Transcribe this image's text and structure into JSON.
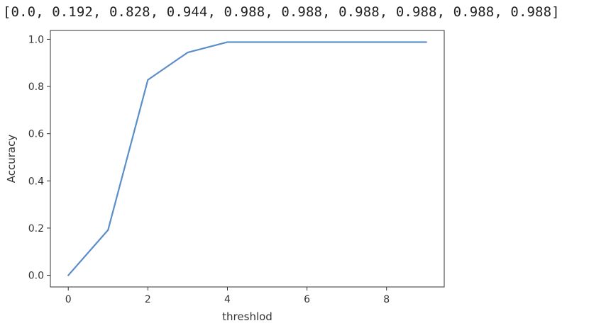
{
  "output": {
    "text": "[0.0, 0.192, 0.828, 0.944, 0.988, 0.988, 0.988, 0.988, 0.988, 0.988]"
  },
  "colors": {
    "line": "#5b8ec9",
    "axes": "#333333"
  },
  "chart_data": {
    "type": "line",
    "title": "",
    "xlabel": "threshlod",
    "ylabel": "Accuracy",
    "x": [
      0,
      1,
      2,
      3,
      4,
      5,
      6,
      7,
      8,
      9
    ],
    "series": [
      {
        "values": [
          0.0,
          0.192,
          0.828,
          0.944,
          0.988,
          0.988,
          0.988,
          0.988,
          0.988,
          0.988
        ]
      }
    ],
    "xlim": [
      -0.45,
      9.45
    ],
    "ylim": [
      -0.0494,
      1.0374
    ],
    "xticks": [
      0,
      2,
      4,
      6,
      8
    ],
    "yticks": [
      0.0,
      0.2,
      0.4,
      0.6,
      0.8,
      1.0
    ],
    "xtick_labels": [
      "0",
      "2",
      "4",
      "6",
      "8"
    ],
    "ytick_labels": [
      "0.0",
      "0.2",
      "0.4",
      "0.6",
      "0.8",
      "1.0"
    ],
    "grid": false,
    "legend": "none"
  }
}
